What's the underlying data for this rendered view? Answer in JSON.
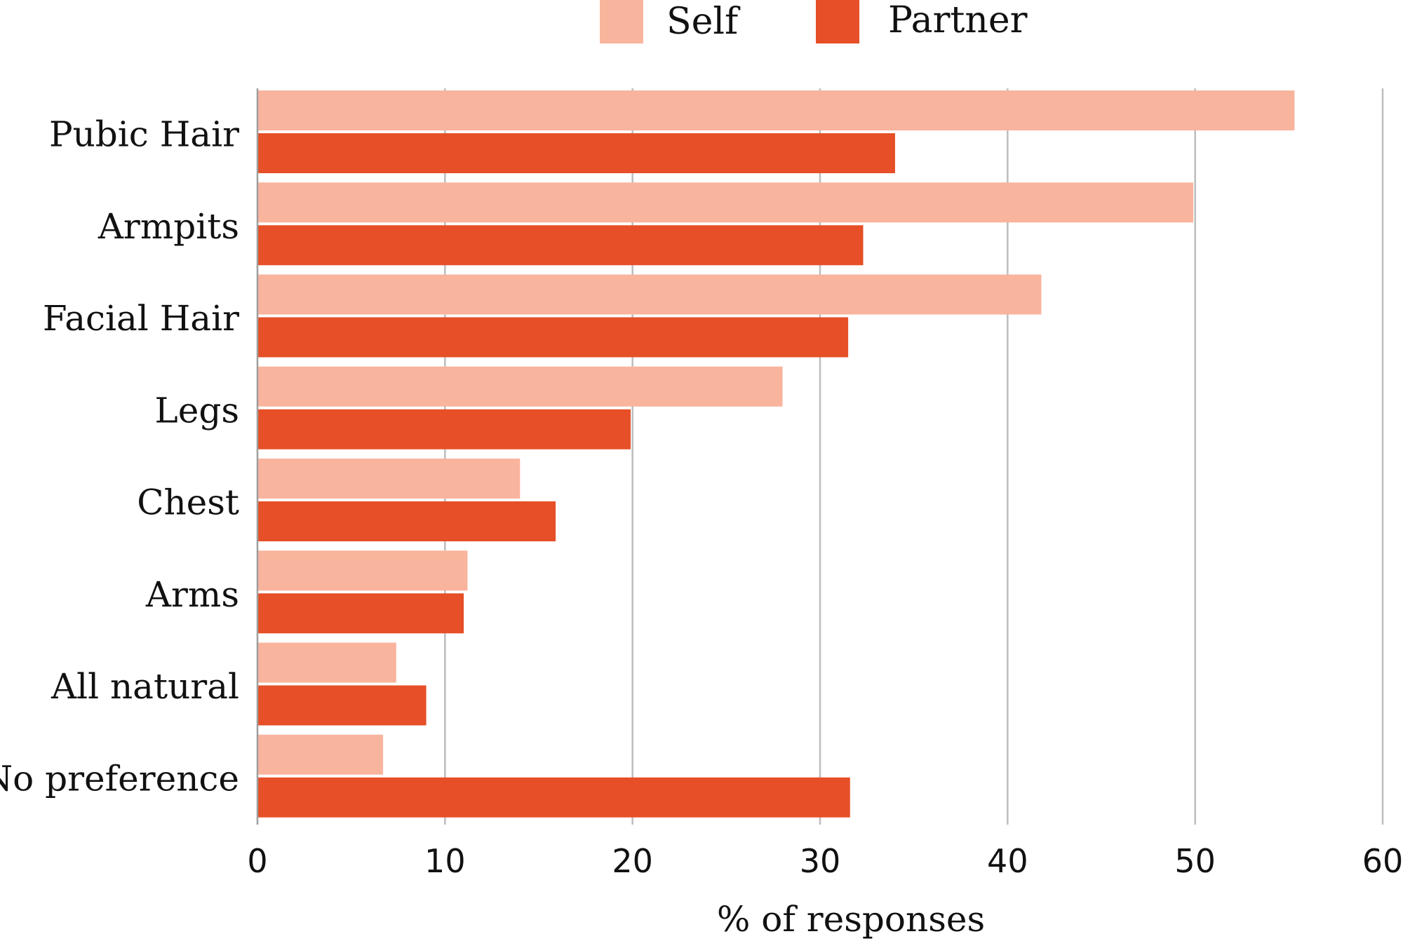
{
  "chart_data": {
    "type": "bar",
    "orientation": "horizontal",
    "categories": [
      "Pubic Hair",
      "Armpits",
      "Facial Hair",
      "Legs",
      "Chest",
      "Arms",
      "All natural",
      "No preference"
    ],
    "series": [
      {
        "name": "Self",
        "color": "#f9b49d",
        "values": [
          55.3,
          49.9,
          41.8,
          28.0,
          14.0,
          11.2,
          7.4,
          6.7
        ]
      },
      {
        "name": "Partner",
        "color": "#e64f27",
        "values": [
          34.0,
          32.3,
          31.5,
          19.9,
          15.9,
          11.0,
          9.0,
          31.6
        ]
      }
    ],
    "xlabel": "% of responses",
    "xlim": [
      0,
      60
    ],
    "xticks": [
      0,
      10,
      20,
      30,
      40,
      50,
      60
    ],
    "grid": "vertical",
    "legend": "top-center"
  }
}
